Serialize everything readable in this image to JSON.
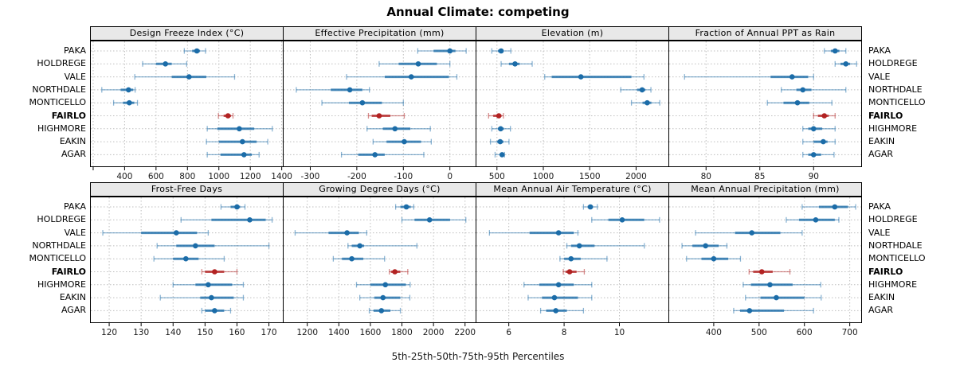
{
  "title": "Annual Climate: competing",
  "caption": "5th-25th-50th-75th-95th Percentiles",
  "colors": {
    "default_point": "#1B6CA8",
    "highlight_point": "#B22222",
    "panel_header_bg": "#E8E8E8",
    "grid": "#BFBFBF",
    "border": "#000000"
  },
  "stations": [
    {
      "name": "PAKA",
      "highlight": false
    },
    {
      "name": "HOLDREGE",
      "highlight": false
    },
    {
      "name": "VALE",
      "highlight": false
    },
    {
      "name": "NORTHDALE",
      "highlight": false
    },
    {
      "name": "MONTICELLO",
      "highlight": false
    },
    {
      "name": "FAIRLO",
      "highlight": true
    },
    {
      "name": "HIGHMORE",
      "highlight": false
    },
    {
      "name": "EAKIN",
      "highlight": false
    },
    {
      "name": "AGAR",
      "highlight": false
    }
  ],
  "chart_data": {
    "type": "dot-interval",
    "percentiles": [
      5,
      25,
      50,
      75,
      95
    ],
    "highlight_row": "FAIRLO",
    "legend_note": "values per station are [5th, 25th, 50th, 75th, 95th] percentiles",
    "grid": "dotted",
    "panels": [
      {
        "id": "design-freeze-index",
        "title": "Design Freeze Index (°C)",
        "xlim": [
          180,
          1412
        ],
        "ticks": [
          {
            "v": 200,
            "label": ""
          },
          {
            "v": 400,
            "label": "400"
          },
          {
            "v": 600,
            "label": "600"
          },
          {
            "v": 800,
            "label": "800"
          },
          {
            "v": 1000,
            "label": "1000"
          },
          {
            "v": 1200,
            "label": "1200"
          },
          {
            "v": 1400,
            "label": "1400"
          }
        ],
        "values": [
          [
            780,
            830,
            860,
            880,
            915
          ],
          [
            515,
            600,
            660,
            700,
            795
          ],
          [
            465,
            700,
            810,
            920,
            1100
          ],
          [
            255,
            375,
            425,
            455,
            467
          ],
          [
            330,
            390,
            430,
            462,
            482
          ],
          [
            997,
            1030,
            1058,
            1077,
            1090
          ],
          [
            926,
            990,
            1130,
            1225,
            1340
          ],
          [
            921,
            1000,
            1150,
            1240,
            1311
          ],
          [
            926,
            1010,
            1160,
            1210,
            1256
          ]
        ]
      },
      {
        "id": "effective-precipitation",
        "title": "Effective Precipitation (mm)",
        "xlim": [
          -359,
          57
        ],
        "ticks": [
          {
            "v": -300,
            "label": "-300"
          },
          {
            "v": -200,
            "label": "-200"
          },
          {
            "v": -100,
            "label": "-100"
          },
          {
            "v": 0,
            "label": "0"
          }
        ],
        "values": [
          [
            -69,
            -35,
            0,
            12,
            35
          ],
          [
            -152,
            -110,
            -68,
            -28,
            0
          ],
          [
            -222,
            -140,
            -83,
            -2,
            15
          ],
          [
            -330,
            -256,
            -215,
            -188,
            -173
          ],
          [
            -275,
            -217,
            -188,
            -146,
            -100
          ],
          [
            -175,
            -168,
            -152,
            -128,
            -98
          ],
          [
            -178,
            -144,
            -118,
            -85,
            -42
          ],
          [
            -165,
            -136,
            -98,
            -62,
            -40
          ],
          [
            -233,
            -197,
            -161,
            -140,
            -56
          ]
        ]
      },
      {
        "id": "elevation",
        "title": "Elevation (m)",
        "xlim": [
          270,
          2357
        ],
        "ticks": [
          {
            "v": 500,
            "label": "500"
          },
          {
            "v": 1000,
            "label": "1000"
          },
          {
            "v": 1500,
            "label": "1500"
          },
          {
            "v": 2000,
            "label": "2000"
          }
        ],
        "values": [
          [
            445,
            510,
            545,
            572,
            650
          ],
          [
            545,
            630,
            695,
            745,
            880
          ],
          [
            1015,
            1090,
            1405,
            1950,
            2085
          ],
          [
            1835,
            2010,
            2065,
            2100,
            2160
          ],
          [
            1950,
            2070,
            2120,
            2165,
            2255
          ],
          [
            410,
            460,
            520,
            550,
            570
          ],
          [
            445,
            510,
            540,
            575,
            645
          ],
          [
            430,
            500,
            535,
            570,
            630
          ],
          [
            480,
            530,
            555,
            570,
            582
          ]
        ]
      },
      {
        "id": "fraction-annual-ppt-rain",
        "title": "Fraction of Annual PPT as Rain",
        "xlim": [
          76.5,
          94.5
        ],
        "ticks": [
          {
            "v": 80,
            "label": "80"
          },
          {
            "v": 85,
            "label": "85"
          },
          {
            "v": 90,
            "label": "90"
          }
        ],
        "values": [
          [
            91,
            91.6,
            92,
            92.4,
            93
          ],
          [
            92,
            92.5,
            93,
            93.4,
            94
          ],
          [
            78,
            86,
            88,
            89.5,
            90
          ],
          [
            87,
            88.4,
            89,
            89.8,
            93
          ],
          [
            85.7,
            87.2,
            88.5,
            89.6,
            91.7
          ],
          [
            90,
            90.4,
            91,
            91.4,
            92
          ],
          [
            89,
            89.5,
            90,
            90.8,
            92
          ],
          [
            89,
            90,
            90.9,
            91.3,
            92
          ],
          [
            89,
            89.5,
            90,
            90.7,
            91.9
          ]
        ]
      },
      {
        "id": "frost-free-days",
        "title": "Frost-Free Days",
        "xlim": [
          114,
          174.6
        ],
        "ticks": [
          {
            "v": 120,
            "label": "120"
          },
          {
            "v": 130,
            "label": "130"
          },
          {
            "v": 140,
            "label": "140"
          },
          {
            "v": 150,
            "label": "150"
          },
          {
            "v": 160,
            "label": "160"
          },
          {
            "v": 170,
            "label": "170"
          }
        ],
        "values": [
          [
            155,
            158,
            160,
            161,
            162.5
          ],
          [
            142.5,
            152,
            164,
            169,
            171
          ],
          [
            118,
            130,
            141,
            147.5,
            151
          ],
          [
            135,
            141,
            147,
            153,
            170
          ],
          [
            134,
            140,
            144,
            148,
            156
          ],
          [
            149,
            150,
            153,
            156,
            160
          ],
          [
            140,
            147,
            151,
            158.5,
            162
          ],
          [
            136,
            148.5,
            152,
            159,
            162
          ],
          [
            149,
            150,
            153,
            156,
            158
          ]
        ]
      },
      {
        "id": "growing-degree-days",
        "title": "Growing Degree Days (°C)",
        "xlim": [
          1045,
          2272
        ],
        "ticks": [
          {
            "v": 1200,
            "label": "1200"
          },
          {
            "v": 1400,
            "label": "1400"
          },
          {
            "v": 1600,
            "label": "1600"
          },
          {
            "v": 1800,
            "label": "1800"
          },
          {
            "v": 2000,
            "label": "2000"
          },
          {
            "v": 2200,
            "label": "2200"
          }
        ],
        "values": [
          [
            1760,
            1790,
            1828,
            1856,
            1875
          ],
          [
            1800,
            1880,
            1975,
            2105,
            2205
          ],
          [
            1123,
            1335,
            1452,
            1527,
            1577
          ],
          [
            1458,
            1482,
            1533,
            1560,
            1895
          ],
          [
            1365,
            1420,
            1482,
            1555,
            1690
          ],
          [
            1720,
            1730,
            1755,
            1790,
            1837
          ],
          [
            1512,
            1600,
            1695,
            1825,
            1852
          ],
          [
            1533,
            1625,
            1680,
            1790,
            1850
          ],
          [
            1593,
            1620,
            1670,
            1727,
            1790
          ]
        ]
      },
      {
        "id": "mean-annual-air-temperature",
        "title": "Mean Annual Air Temperature (°C)",
        "xlim": [
          4.8,
          11.8
        ],
        "ticks": [
          {
            "v": 6,
            "label": "6"
          },
          {
            "v": 8,
            "label": "8"
          },
          {
            "v": 10,
            "label": "10"
          }
        ],
        "values": [
          [
            8.7,
            8.85,
            8.95,
            9.05,
            9.2
          ],
          [
            9.0,
            9.6,
            10.1,
            10.9,
            11.45
          ],
          [
            5.3,
            6.75,
            7.8,
            8.35,
            8.5
          ],
          [
            8.1,
            8.25,
            8.55,
            9.1,
            10.9
          ],
          [
            7.85,
            8.0,
            8.25,
            8.6,
            9.55
          ],
          [
            7.97,
            8.05,
            8.2,
            8.45,
            8.73
          ],
          [
            6.55,
            7.1,
            7.8,
            8.35,
            9.0
          ],
          [
            6.7,
            7.2,
            7.65,
            8.5,
            9.0
          ],
          [
            7.15,
            7.35,
            7.7,
            8.1,
            8.7
          ]
        ]
      },
      {
        "id": "mean-annual-precipitation",
        "title": "Mean Annual Precipitation (mm)",
        "xlim": [
          300,
          727
        ],
        "ticks": [
          {
            "v": 400,
            "label": "400"
          },
          {
            "v": 500,
            "label": "500"
          },
          {
            "v": 600,
            "label": "600"
          },
          {
            "v": 700,
            "label": "700"
          }
        ],
        "values": [
          [
            595,
            632,
            667,
            696,
            713
          ],
          [
            560,
            588,
            625,
            667,
            676
          ],
          [
            360,
            447,
            484,
            547,
            595
          ],
          [
            330,
            353,
            382,
            411,
            429
          ],
          [
            340,
            373,
            400,
            432,
            459
          ],
          [
            478,
            487,
            506,
            530,
            568
          ],
          [
            465,
            482,
            524,
            574,
            636
          ],
          [
            470,
            503,
            538,
            600,
            637
          ],
          [
            444,
            458,
            479,
            555,
            620
          ]
        ]
      }
    ]
  }
}
